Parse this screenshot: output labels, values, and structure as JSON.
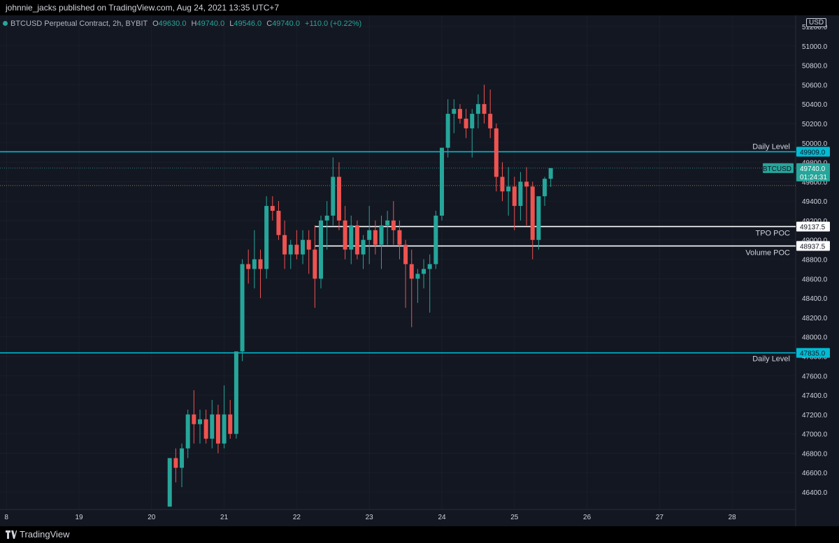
{
  "header": {
    "published": "johnnie_jacks published on TradingView.com, Aug 24, 2021 13:35 UTC+7"
  },
  "legend": {
    "symbol": "BTCUSD Perpetual Contract, 2h, BYBIT",
    "o_key": "O",
    "o": "49630.0",
    "h_key": "H",
    "h": "49740.0",
    "l_key": "L",
    "l": "49546.0",
    "c_key": "C",
    "c": "49740.0",
    "change": "+110.0 (+0.22%)"
  },
  "currency": "USD",
  "footer": {
    "brand": "TradingView"
  },
  "colors": {
    "up": "#26a69a",
    "down": "#ef5350",
    "level": "#00bcd4",
    "poc": "#ffffff",
    "background": "#131722",
    "grid": "#2a2e39"
  },
  "chart_data": {
    "type": "candlestick",
    "y_axis": {
      "range": [
        46250,
        51200
      ],
      "ticks": [
        "51200.0",
        "51000.0",
        "50800.0",
        "50600.0",
        "50400.0",
        "50200.0",
        "50000.0",
        "49800.0",
        "49600.0",
        "49400.0",
        "49200.0",
        "49000.0",
        "48800.0",
        "48600.0",
        "48400.0",
        "48200.0",
        "48000.0",
        "47800.0",
        "47600.0",
        "47400.0",
        "47200.0",
        "47000.0",
        "46800.0",
        "46600.0",
        "46400.0"
      ]
    },
    "x_axis": {
      "ticks": [
        {
          "label": "18",
          "bar": -144
        },
        {
          "label": "19",
          "bar": -132
        },
        {
          "label": "20",
          "bar": -120
        },
        {
          "label": "21",
          "bar": -108
        },
        {
          "label": "22",
          "bar": -96
        },
        {
          "label": "23",
          "bar": -84
        },
        {
          "label": "24",
          "bar": -72
        },
        {
          "label": "25",
          "bar": -60
        },
        {
          "label": "26",
          "bar": -48
        },
        {
          "label": "27",
          "bar": -36
        },
        {
          "label": "28",
          "bar": -24
        }
      ],
      "tick_label_overrides": {
        "18": "8"
      }
    },
    "candles": [
      [
        46250,
        46750,
        46250,
        46750
      ],
      [
        46750,
        46850,
        46500,
        46650
      ],
      [
        46650,
        46900,
        46450,
        46850
      ],
      [
        46850,
        47250,
        46750,
        47200
      ],
      [
        47200,
        47450,
        46900,
        47100
      ],
      [
        47100,
        47250,
        46900,
        47150
      ],
      [
        47150,
        47250,
        46900,
        46950
      ],
      [
        46950,
        47350,
        46850,
        47200
      ],
      [
        47200,
        47300,
        46800,
        46900
      ],
      [
        46900,
        47500,
        46850,
        47200
      ],
      [
        47200,
        47350,
        46950,
        47000
      ],
      [
        47000,
        47850,
        46950,
        47850
      ],
      [
        47850,
        48800,
        47750,
        48750
      ],
      [
        48750,
        48900,
        48550,
        48700
      ],
      [
        48700,
        49100,
        48500,
        48800
      ],
      [
        48800,
        48900,
        48400,
        48700
      ],
      [
        48700,
        49450,
        48600,
        49350
      ],
      [
        49350,
        49450,
        49200,
        49300
      ],
      [
        49300,
        49400,
        49000,
        49050
      ],
      [
        49050,
        49200,
        48700,
        48850
      ],
      [
        48850,
        49000,
        48700,
        48950
      ],
      [
        48950,
        49100,
        48800,
        48850
      ],
      [
        48850,
        49100,
        48750,
        49000
      ],
      [
        49000,
        49100,
        48650,
        48900
      ],
      [
        48900,
        49150,
        48300,
        48600
      ],
      [
        48600,
        49250,
        48500,
        49200
      ],
      [
        49200,
        49400,
        48900,
        49250
      ],
      [
        49250,
        49850,
        49150,
        49650
      ],
      [
        49650,
        49800,
        49100,
        49200
      ],
      [
        49200,
        49350,
        48800,
        48900
      ],
      [
        48900,
        49250,
        48750,
        49150
      ],
      [
        49150,
        49200,
        48800,
        48850
      ],
      [
        48850,
        49050,
        48700,
        49000
      ],
      [
        49000,
        49350,
        48750,
        49100
      ],
      [
        49100,
        49200,
        48850,
        48950
      ],
      [
        48950,
        49250,
        48700,
        49150
      ],
      [
        49150,
        49300,
        48950,
        49200
      ],
      [
        49200,
        49400,
        48950,
        49100
      ],
      [
        49100,
        49200,
        48800,
        48950
      ],
      [
        48950,
        49000,
        48300,
        48750
      ],
      [
        48750,
        48900,
        48100,
        48600
      ],
      [
        48600,
        48700,
        48350,
        48650
      ],
      [
        48650,
        48800,
        48500,
        48700
      ],
      [
        48700,
        48850,
        48250,
        48750
      ],
      [
        48750,
        49300,
        48700,
        49250
      ],
      [
        49250,
        49950,
        49200,
        49950
      ],
      [
        49950,
        50450,
        49850,
        50300
      ],
      [
        50300,
        50450,
        50100,
        50350
      ],
      [
        50350,
        50400,
        50200,
        50250
      ],
      [
        50250,
        50350,
        50050,
        50150
      ],
      [
        50150,
        50350,
        49850,
        50300
      ],
      [
        50300,
        50500,
        50150,
        50400
      ],
      [
        50400,
        50600,
        50200,
        50300
      ],
      [
        50300,
        50550,
        50050,
        50150
      ],
      [
        50150,
        50200,
        49500,
        49650
      ],
      [
        49650,
        49800,
        49400,
        49500
      ],
      [
        49500,
        49750,
        49250,
        49550
      ],
      [
        49550,
        49650,
        49100,
        49350
      ],
      [
        49350,
        49700,
        49200,
        49600
      ],
      [
        49600,
        49750,
        49150,
        49550
      ],
      [
        49550,
        49600,
        48800,
        49000
      ],
      [
        49000,
        49450,
        48900,
        49450
      ],
      [
        49450,
        49650,
        49350,
        49630
      ],
      [
        49630,
        49740,
        49546,
        49740
      ]
    ],
    "series_start_bar": -117,
    "horizontal_lines": [
      {
        "name": "Daily Level",
        "price": 49909.0,
        "label": "49909.0",
        "color": "#00bcd4",
        "style": "solid"
      },
      {
        "name": "TPO POC",
        "price": 49137.5,
        "label": "49137.5",
        "color": "#ffffff",
        "style": "solid",
        "start_bar": -93
      },
      {
        "name": "Volume POC",
        "price": 48937.5,
        "label": "48937.5",
        "color": "#ffffff",
        "style": "solid",
        "start_bar": -93
      },
      {
        "name": "Daily Level",
        "price": 47835.0,
        "label": "47835.0",
        "color": "#00bcd4",
        "style": "solid"
      }
    ],
    "last_price": {
      "symbol": "BTCUSD",
      "price": 49740.0,
      "label": "49740.0",
      "countdown": "01:24:31"
    },
    "dotted_line_price": 49560
  }
}
